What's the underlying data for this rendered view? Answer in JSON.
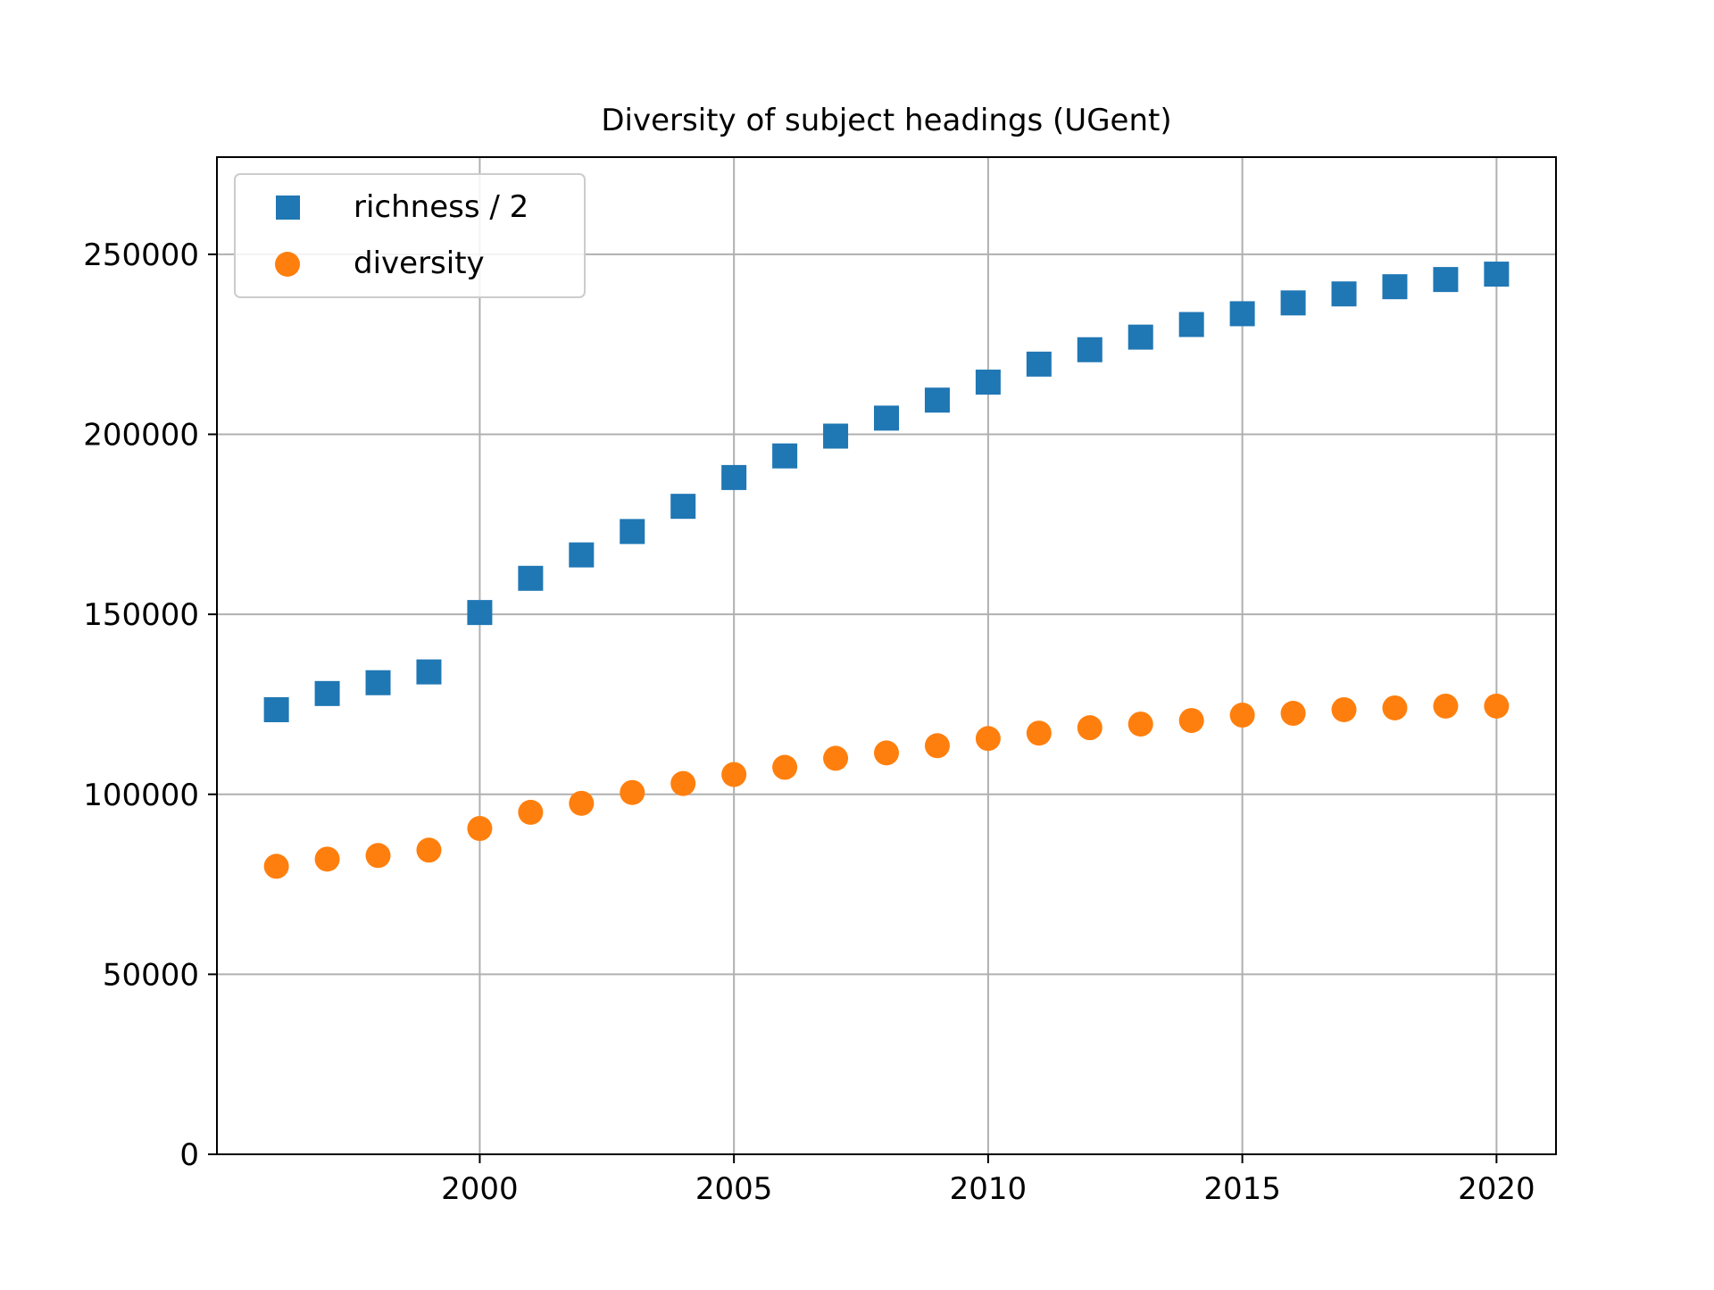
{
  "chart_data": {
    "type": "scatter",
    "title": "Diversity of subject headings (UGent)",
    "xlabel": "",
    "ylabel": "",
    "xlim": [
      1994.83,
      2021.17
    ],
    "ylim": [
      0,
      277000
    ],
    "x_ticks": [
      2000,
      2005,
      2010,
      2015,
      2020
    ],
    "y_ticks": [
      0,
      50000,
      100000,
      150000,
      200000,
      250000
    ],
    "x_tick_labels": [
      "2000",
      "2005",
      "2010",
      "2015",
      "2020"
    ],
    "y_tick_labels": [
      "0",
      "50000",
      "100000",
      "150000",
      "200000",
      "250000"
    ],
    "grid": true,
    "legend_position": "upper-left",
    "x": [
      1996,
      1997,
      1998,
      1999,
      2000,
      2001,
      2002,
      2003,
      2004,
      2005,
      2006,
      2007,
      2008,
      2009,
      2010,
      2011,
      2012,
      2013,
      2014,
      2015,
      2016,
      2017,
      2018,
      2019,
      2020
    ],
    "series": [
      {
        "name": "richness / 2",
        "marker": "square",
        "color": "#1f77b4",
        "values": [
          123500,
          128000,
          131000,
          134000,
          150500,
          160000,
          166500,
          173000,
          180000,
          188000,
          194000,
          199500,
          204500,
          209500,
          214500,
          219500,
          223500,
          227000,
          230500,
          233500,
          236500,
          239000,
          241000,
          243000,
          244500
        ]
      },
      {
        "name": "diversity",
        "marker": "circle",
        "color": "#ff7f0e",
        "values": [
          80000,
          82000,
          83000,
          84500,
          90500,
          95000,
          97500,
          100500,
          103000,
          105500,
          107500,
          110000,
          111500,
          113500,
          115500,
          117000,
          118500,
          119500,
          120500,
          122000,
          122500,
          123500,
          124000,
          124500,
          124500
        ]
      }
    ]
  }
}
